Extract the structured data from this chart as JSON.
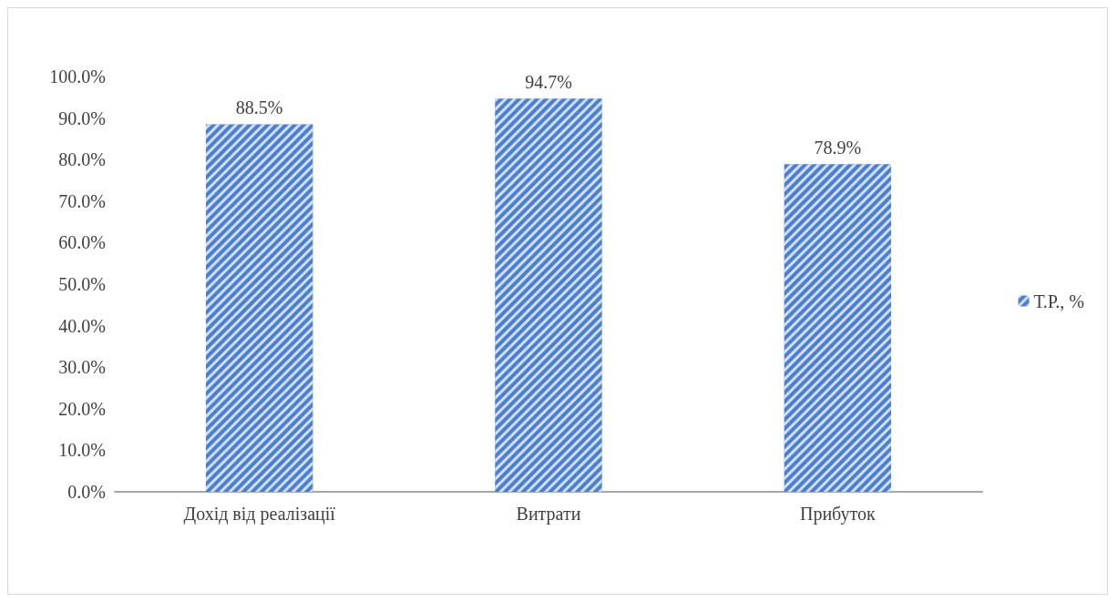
{
  "chart_data": {
    "type": "bar",
    "categories": [
      "Дохід від реалізації",
      "Витрати",
      "Прибуток"
    ],
    "series": [
      {
        "name": "Т.Р., %",
        "color": "#4a7fd1",
        "values": [
          88.5,
          94.7,
          78.9
        ],
        "value_labels": [
          "88.5%",
          "94.7%",
          "78.9%"
        ]
      }
    ],
    "ylim": [
      0,
      100
    ],
    "yticks": [
      {
        "value": 0,
        "label": "0.0%"
      },
      {
        "value": 10,
        "label": "10.0%"
      },
      {
        "value": 20,
        "label": "20.0%"
      },
      {
        "value": 30,
        "label": "30.0%"
      },
      {
        "value": 40,
        "label": "40.0%"
      },
      {
        "value": 50,
        "label": "50.0%"
      },
      {
        "value": 60,
        "label": "60.0%"
      },
      {
        "value": 70,
        "label": "70.0%"
      },
      {
        "value": 80,
        "label": "80.0%"
      },
      {
        "value": 90,
        "label": "90.0%"
      },
      {
        "value": 100,
        "label": "100.0%"
      }
    ],
    "grid": false,
    "legend": "right"
  }
}
